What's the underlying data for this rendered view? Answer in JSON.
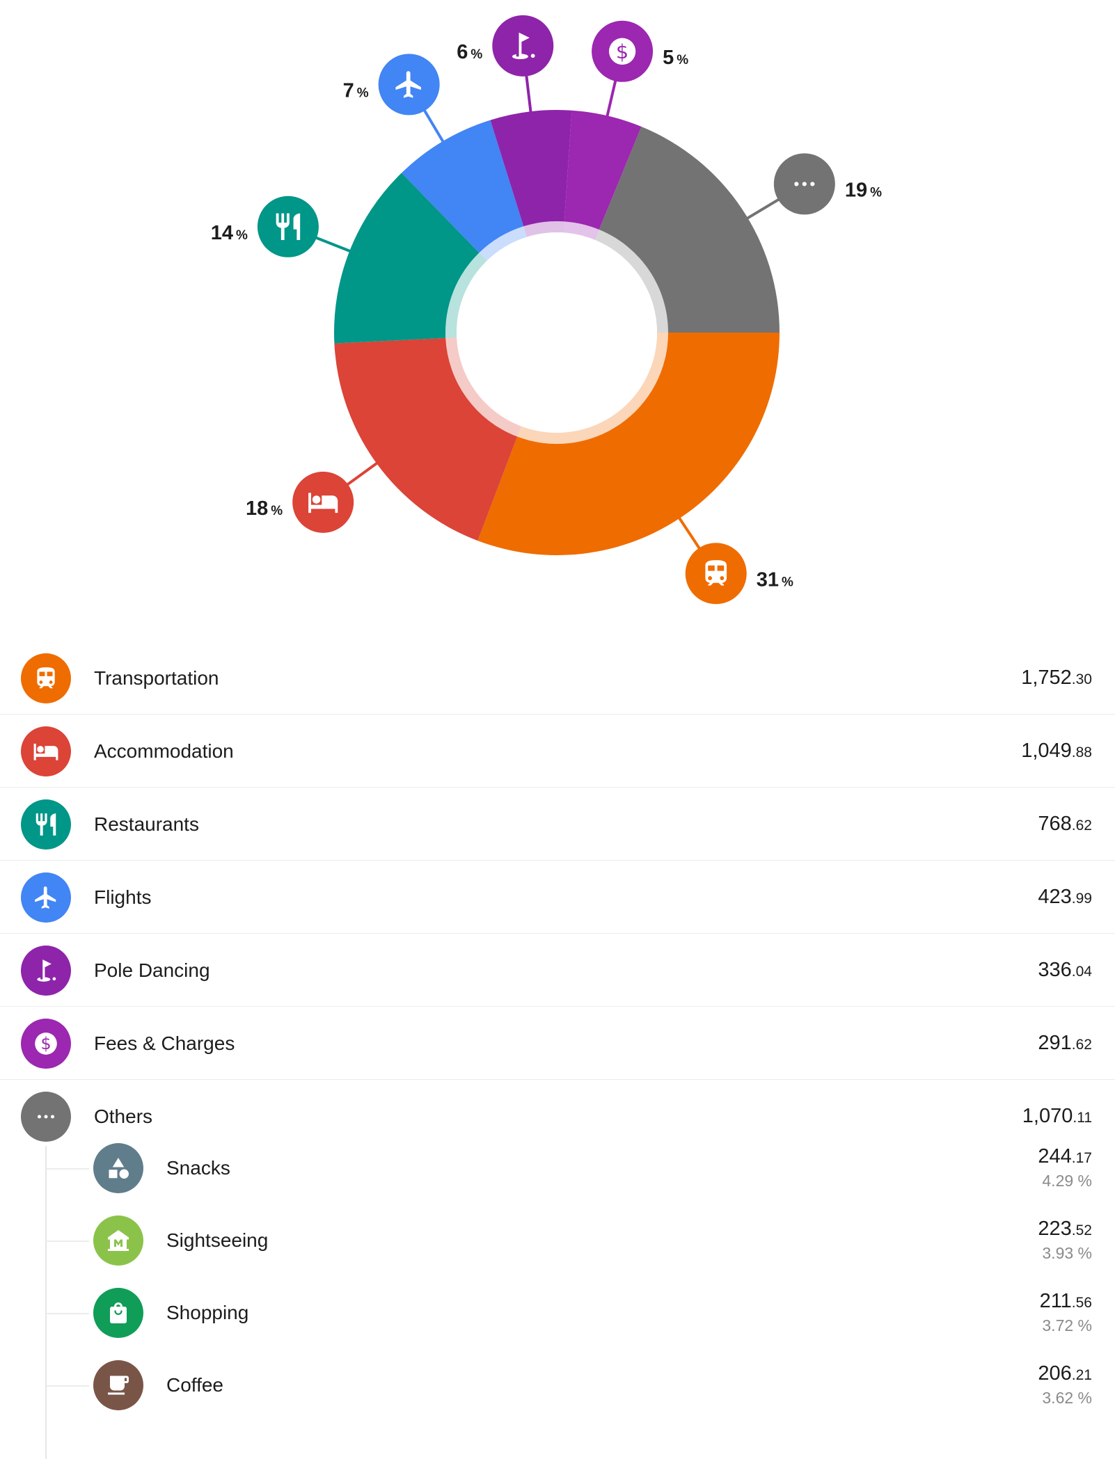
{
  "chart_data": {
    "type": "pie",
    "variant": "donut",
    "categories": [
      "Transportation",
      "Accommodation",
      "Restaurants",
      "Flights",
      "Pole Dancing",
      "Fees & Charges",
      "Others"
    ],
    "values": [
      1752.3,
      1049.88,
      768.62,
      423.99,
      336.04,
      291.62,
      1070.11
    ],
    "percent_labels": [
      "31",
      "18",
      "14",
      "7",
      "6",
      "5",
      "19"
    ],
    "percent_symbol": "%",
    "colors": [
      "#ef6c00",
      "#db4437",
      "#009688",
      "#4285f4",
      "#8e24aa",
      "#9c27b0",
      "#737373"
    ],
    "icons": [
      "train-icon",
      "bed-icon",
      "cutlery-icon",
      "airplane-icon",
      "golf-flag-icon",
      "dollar-icon",
      "more-dots-icon"
    ]
  },
  "categories": [
    {
      "name": "Transportation",
      "whole": "1,752",
      "cents": ".30",
      "color": "#ef6c00",
      "icon": "train-icon"
    },
    {
      "name": "Accommodation",
      "whole": "1,049",
      "cents": ".88",
      "color": "#db4437",
      "icon": "bed-icon"
    },
    {
      "name": "Restaurants",
      "whole": "768",
      "cents": ".62",
      "color": "#009688",
      "icon": "cutlery-icon"
    },
    {
      "name": "Flights",
      "whole": "423",
      "cents": ".99",
      "color": "#4285f4",
      "icon": "airplane-icon"
    },
    {
      "name": "Pole Dancing",
      "whole": "336",
      "cents": ".04",
      "color": "#8e24aa",
      "icon": "golf-flag-icon"
    },
    {
      "name": "Fees & Charges",
      "whole": "291",
      "cents": ".62",
      "color": "#9c27b0",
      "icon": "dollar-icon"
    },
    {
      "name": "Others",
      "whole": "1,070",
      "cents": ".11",
      "color": "#737373",
      "icon": "more-dots-icon"
    }
  ],
  "subcategories": [
    {
      "name": "Snacks",
      "whole": "244",
      "cents": ".17",
      "share": "4.29 %",
      "color": "#607d8b",
      "icon": "shapes-icon"
    },
    {
      "name": "Sightseeing",
      "whole": "223",
      "cents": ".52",
      "share": "3.93 %",
      "color": "#8bc34a",
      "icon": "museum-icon"
    },
    {
      "name": "Shopping",
      "whole": "211",
      "cents": ".56",
      "share": "3.72 %",
      "color": "#0f9d58",
      "icon": "shopping-bag-icon"
    },
    {
      "name": "Coffee",
      "whole": "206",
      "cents": ".21",
      "share": "3.62 %",
      "color": "#795548",
      "icon": "coffee-cup-icon"
    }
  ]
}
